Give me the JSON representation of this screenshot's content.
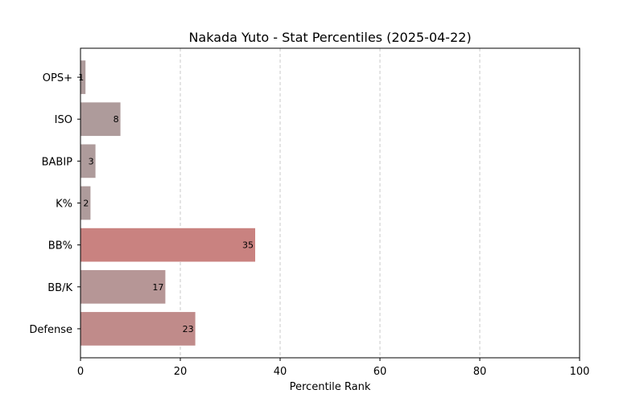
{
  "chart_data": {
    "type": "bar",
    "orientation": "horizontal",
    "title": "Nakada Yuto - Stat Percentiles (2025-04-22)",
    "xlabel": "Percentile Rank",
    "ylabel": "",
    "xlim": [
      0,
      100
    ],
    "xticks": [
      "0",
      "20",
      "40",
      "60",
      "80",
      "100"
    ],
    "grid": "x-dashed",
    "categories": [
      "OPS+",
      "ISO",
      "BABIP",
      "K%",
      "BB%",
      "BB/K",
      "Defense"
    ],
    "values": [
      1,
      8,
      3,
      2,
      35,
      17,
      23
    ],
    "data_labels": [
      "1",
      "8",
      "3",
      "2",
      "35",
      "17",
      "23"
    ],
    "colors": [
      "#ae9b9b",
      "#ae9b9b",
      "#ae9b9b",
      "#ae9b9b",
      "#c98280",
      "#b69696",
      "#c08b8a"
    ]
  }
}
